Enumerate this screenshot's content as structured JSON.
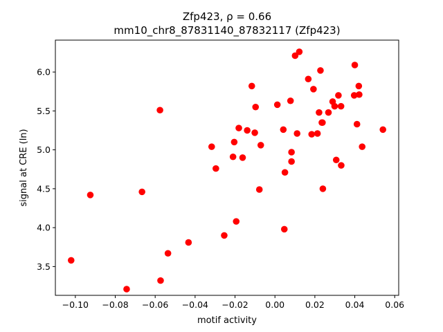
{
  "chart_data": {
    "type": "scatter",
    "title_line1": "Zfp423, ρ = 0.66",
    "title_line2": "mm10_chr8_87831140_87832117 (Zfp423)",
    "xlabel": "motif activity",
    "ylabel": "signal at CRE (ln)",
    "xlim": [
      -0.11,
      0.062
    ],
    "ylim": [
      3.13,
      6.41
    ],
    "xticks": [
      -0.1,
      -0.08,
      -0.06,
      -0.04,
      -0.02,
      0.0,
      0.02,
      0.04,
      0.06
    ],
    "xtick_labels": [
      "−0.10",
      "−0.08",
      "−0.06",
      "−0.04",
      "−0.02",
      "0.00",
      "0.02",
      "0.04",
      "0.06"
    ],
    "yticks": [
      3.5,
      4.0,
      4.5,
      5.0,
      5.5,
      6.0
    ],
    "ytick_labels": [
      "3.5",
      "4.0",
      "4.5",
      "5.0",
      "5.5",
      "6.0"
    ],
    "grid": false,
    "marker_color": "#ff0000",
    "points": [
      {
        "x": -0.1021,
        "y": 3.58
      },
      {
        "x": -0.0925,
        "y": 4.42
      },
      {
        "x": -0.0743,
        "y": 3.21
      },
      {
        "x": -0.0666,
        "y": 4.46
      },
      {
        "x": -0.0576,
        "y": 5.51
      },
      {
        "x": -0.0573,
        "y": 3.32
      },
      {
        "x": -0.0536,
        "y": 3.67
      },
      {
        "x": -0.0433,
        "y": 3.81
      },
      {
        "x": -0.0317,
        "y": 5.04
      },
      {
        "x": -0.0296,
        "y": 4.76
      },
      {
        "x": -0.0254,
        "y": 3.9
      },
      {
        "x": -0.021,
        "y": 4.91
      },
      {
        "x": -0.0204,
        "y": 5.1
      },
      {
        "x": -0.0194,
        "y": 4.08
      },
      {
        "x": -0.0181,
        "y": 5.28
      },
      {
        "x": -0.0162,
        "y": 4.9
      },
      {
        "x": -0.0139,
        "y": 5.25
      },
      {
        "x": -0.0116,
        "y": 5.82
      },
      {
        "x": -0.0101,
        "y": 5.22
      },
      {
        "x": -0.0097,
        "y": 5.55
      },
      {
        "x": -0.0078,
        "y": 4.49
      },
      {
        "x": -0.0071,
        "y": 5.06
      },
      {
        "x": 0.0012,
        "y": 5.58
      },
      {
        "x": 0.0042,
        "y": 5.26
      },
      {
        "x": 0.0047,
        "y": 3.98
      },
      {
        "x": 0.005,
        "y": 4.71
      },
      {
        "x": 0.0078,
        "y": 5.63
      },
      {
        "x": 0.0083,
        "y": 4.97
      },
      {
        "x": 0.0083,
        "y": 4.85
      },
      {
        "x": 0.0101,
        "y": 6.21
      },
      {
        "x": 0.0111,
        "y": 5.21
      },
      {
        "x": 0.0122,
        "y": 6.26
      },
      {
        "x": 0.0167,
        "y": 5.91
      },
      {
        "x": 0.0184,
        "y": 5.2
      },
      {
        "x": 0.0193,
        "y": 5.78
      },
      {
        "x": 0.0213,
        "y": 5.21
      },
      {
        "x": 0.0221,
        "y": 5.48
      },
      {
        "x": 0.0228,
        "y": 6.02
      },
      {
        "x": 0.0235,
        "y": 5.35
      },
      {
        "x": 0.0238,
        "y": 5.35
      },
      {
        "x": 0.024,
        "y": 4.5
      },
      {
        "x": 0.0268,
        "y": 5.48
      },
      {
        "x": 0.0289,
        "y": 5.62
      },
      {
        "x": 0.0299,
        "y": 5.56
      },
      {
        "x": 0.0307,
        "y": 4.87
      },
      {
        "x": 0.0318,
        "y": 5.7
      },
      {
        "x": 0.0331,
        "y": 5.56
      },
      {
        "x": 0.0332,
        "y": 4.8
      },
      {
        "x": 0.0397,
        "y": 5.7
      },
      {
        "x": 0.04,
        "y": 6.09
      },
      {
        "x": 0.0411,
        "y": 5.33
      },
      {
        "x": 0.042,
        "y": 5.82
      },
      {
        "x": 0.0422,
        "y": 5.71
      },
      {
        "x": 0.0437,
        "y": 5.04
      },
      {
        "x": 0.0541,
        "y": 5.26
      }
    ]
  }
}
